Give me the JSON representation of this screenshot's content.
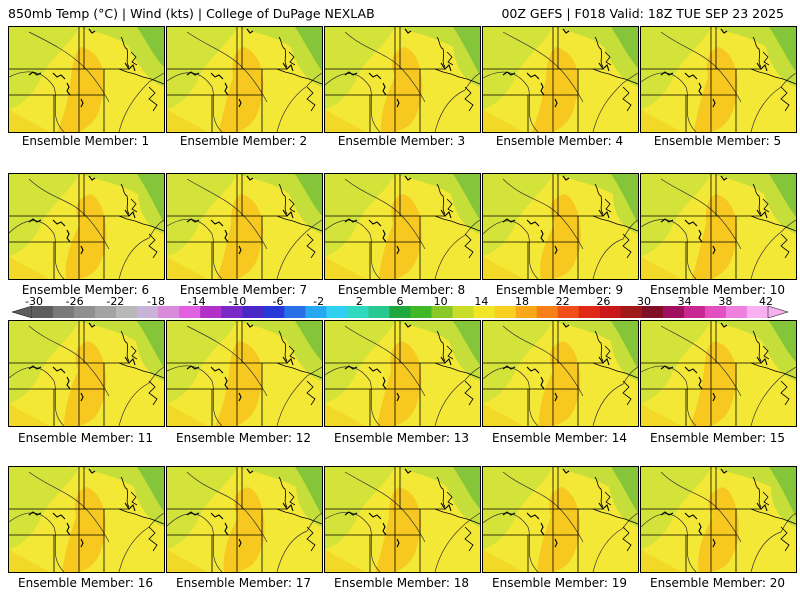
{
  "header": {
    "left_title": "850mb Temp (°C) | Wind (kts) | College of DuPage NEXLAB",
    "right_title": "00Z GEFS | F018 Valid: 18Z TUE SEP 23 2025"
  },
  "panels": [
    {
      "label": "Ensemble Member: 1"
    },
    {
      "label": "Ensemble Member: 2"
    },
    {
      "label": "Ensemble Member: 3"
    },
    {
      "label": "Ensemble Member: 4"
    },
    {
      "label": "Ensemble Member: 5"
    },
    {
      "label": "Ensemble Member: 6"
    },
    {
      "label": "Ensemble Member: 7"
    },
    {
      "label": "Ensemble Member: 8"
    },
    {
      "label": "Ensemble Member: 9"
    },
    {
      "label": "Ensemble Member: 10"
    },
    {
      "label": "Ensemble Member: 11"
    },
    {
      "label": "Ensemble Member: 12"
    },
    {
      "label": "Ensemble Member: 13"
    },
    {
      "label": "Ensemble Member: 14"
    },
    {
      "label": "Ensemble Member: 15"
    },
    {
      "label": "Ensemble Member: 16"
    },
    {
      "label": "Ensemble Member: 17"
    },
    {
      "label": "Ensemble Member: 18"
    },
    {
      "label": "Ensemble Member: 19"
    },
    {
      "label": "Ensemble Member: 20"
    }
  ],
  "colorbar": {
    "tick_labels": [
      "-30",
      "-26",
      "-22",
      "-18",
      "-14",
      "-10",
      "-6",
      "-2",
      "2",
      "6",
      "10",
      "14",
      "18",
      "22",
      "26",
      "30",
      "34",
      "38",
      "42"
    ],
    "colors": [
      "#5e5e5e",
      "#7a7a7a",
      "#8f8f8f",
      "#a3a3a3",
      "#b8b8b8",
      "#c9b3d9",
      "#d98ad9",
      "#e060e0",
      "#b030c8",
      "#7a28c8",
      "#4a28c8",
      "#2838d8",
      "#2870e8",
      "#28a8f0",
      "#30d0f0",
      "#30d8c0",
      "#28c890",
      "#20a840",
      "#40b828",
      "#88c828",
      "#c8dc28",
      "#f0e628",
      "#f8d020",
      "#f8a818",
      "#f88018",
      "#f05018",
      "#e02818",
      "#c81818",
      "#a01818",
      "#801028",
      "#a01060",
      "#c82890",
      "#e050c0",
      "#f080e0",
      "#f8b0f0"
    ]
  }
}
